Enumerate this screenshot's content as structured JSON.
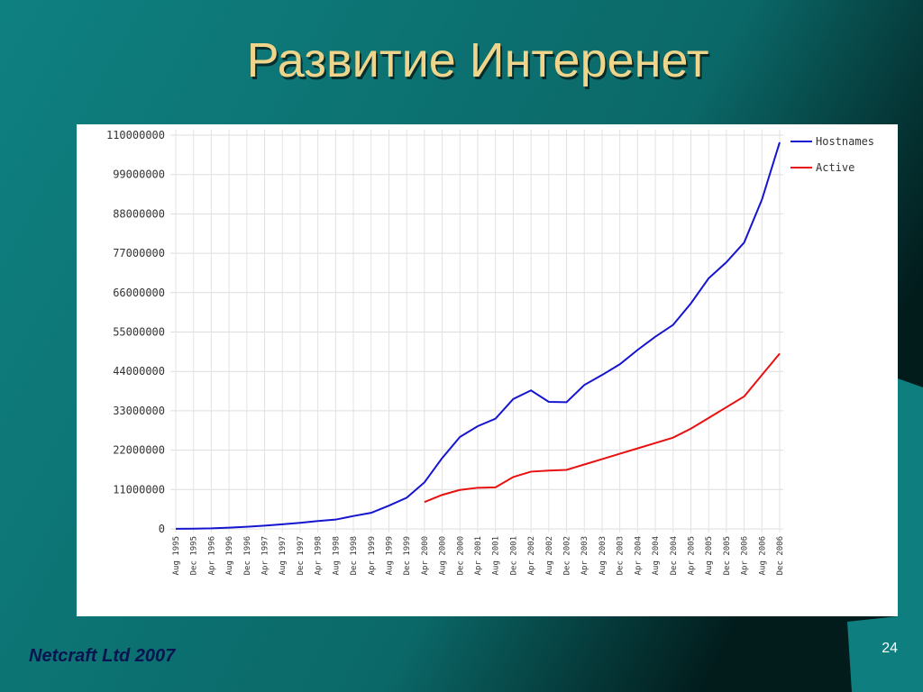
{
  "slide": {
    "title": "Развитие Интеренет",
    "footer": "Netcraft Ltd 2007",
    "page_number": "24"
  },
  "chart_data": {
    "type": "line",
    "categories": [
      "Aug 1995",
      "Dec 1995",
      "Apr 1996",
      "Aug 1996",
      "Dec 1996",
      "Apr 1997",
      "Aug 1997",
      "Dec 1997",
      "Apr 1998",
      "Aug 1998",
      "Dec 1998",
      "Apr 1999",
      "Aug 1999",
      "Dec 1999",
      "Apr 2000",
      "Aug 2000",
      "Dec 2000",
      "Apr 2001",
      "Aug 2001",
      "Dec 2001",
      "Apr 2002",
      "Aug 2002",
      "Dec 2002",
      "Apr 2003",
      "Aug 2003",
      "Dec 2003",
      "Apr 2004",
      "Aug 2004",
      "Dec 2004",
      "Apr 2005",
      "Aug 2005",
      "Dec 2005",
      "Apr 2006",
      "Aug 2006",
      "Dec 2006"
    ],
    "series": [
      {
        "name": "Hostnames",
        "color": "#1515d0",
        "values": [
          20000,
          70000,
          150000,
          340000,
          600000,
          900000,
          1300000,
          1700000,
          2200000,
          2600000,
          3600000,
          4500000,
          6500000,
          8700000,
          13000000,
          19800000,
          25700000,
          28700000,
          30800000,
          36300000,
          38700000,
          35500000,
          35400000,
          40200000,
          43000000,
          46000000,
          50000000,
          53700000,
          57000000,
          63000000,
          70000000,
          74500000,
          80000000,
          92000000,
          108000000
        ]
      },
      {
        "name": "Active",
        "color": "#e81010",
        "values": [
          null,
          null,
          null,
          null,
          null,
          null,
          null,
          null,
          null,
          null,
          null,
          null,
          null,
          null,
          7500000,
          9500000,
          10900000,
          11500000,
          11600000,
          14500000,
          16000000,
          16300000,
          16500000,
          18000000,
          19500000,
          21000000,
          22500000,
          24000000,
          25500000,
          28000000,
          31000000,
          34000000,
          37000000,
          43000000,
          49000000
        ]
      }
    ],
    "ylim": [
      0,
      110000000
    ],
    "yticks": [
      0,
      11000000,
      22000000,
      33000000,
      44000000,
      55000000,
      66000000,
      77000000,
      88000000,
      99000000,
      110000000
    ],
    "grid": true,
    "legend": "top-right"
  }
}
